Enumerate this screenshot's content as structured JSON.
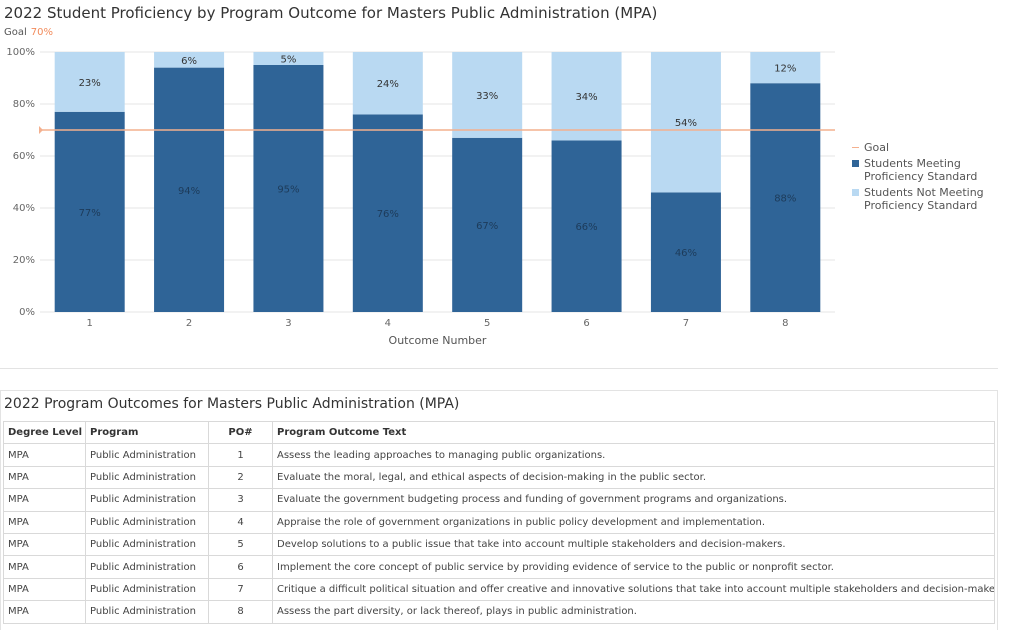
{
  "chart": {
    "title": "2022 Student Proficiency by Program Outcome for Masters Public Administration (MPA)",
    "goal_label": "Goal",
    "goal_value_label": "70%"
  },
  "chart_data": {
    "type": "bar",
    "stacked": true,
    "title": "2022 Student Proficiency by Program Outcome for Masters Public Administration (MPA)",
    "xlabel": "Outcome Number",
    "ylabel": "",
    "ylim": [
      0,
      100
    ],
    "yticks": [
      "0%",
      "20%",
      "40%",
      "60%",
      "80%",
      "100%"
    ],
    "categories": [
      "1",
      "2",
      "3",
      "4",
      "5",
      "6",
      "7",
      "8"
    ],
    "series": [
      {
        "name": "Students Meeting Proficiency Standard",
        "values": [
          77,
          94,
          95,
          76,
          67,
          66,
          46,
          88
        ],
        "labels": [
          "77%",
          "94%",
          "95%",
          "76%",
          "67%",
          "66%",
          "46%",
          "88%"
        ]
      },
      {
        "name": "Students Not Meeting Proficiency Standard",
        "values": [
          23,
          6,
          5,
          24,
          33,
          34,
          54,
          12
        ],
        "labels": [
          "23%",
          "6%",
          "5%",
          "24%",
          "33%",
          "34%",
          "54%",
          "12%"
        ]
      }
    ],
    "goal_line": {
      "name": "Goal",
      "value": 70
    },
    "legend_position": "right",
    "grid": true
  },
  "colors": {
    "meeting": "#2f6497",
    "not_meeting": "#b9d9f2",
    "goal": "#f4b08e",
    "grid": "#e6e6e6"
  },
  "legend": [
    {
      "label": "Goal",
      "kind": "line",
      "color": "#f4b08e"
    },
    {
      "label": "Students Meeting Proficiency Standard",
      "kind": "box",
      "color": "#2f6497"
    },
    {
      "label": "Students Not Meeting Proficiency Standard",
      "kind": "box",
      "color": "#b9d9f2"
    }
  ],
  "table": {
    "title": "2022 Program Outcomes for Masters Public Administration (MPA)",
    "headers": [
      "Degree Level",
      "Program",
      "PO#",
      "Program Outcome Text"
    ],
    "rows": [
      [
        "MPA",
        "Public Administration",
        "1",
        "Assess the leading approaches to managing public organizations."
      ],
      [
        "MPA",
        "Public Administration",
        "2",
        "Evaluate the moral, legal, and ethical aspects of decision-making in the public sector."
      ],
      [
        "MPA",
        "Public Administration",
        "3",
        "Evaluate the government budgeting process and funding of government programs and organizations."
      ],
      [
        "MPA",
        "Public Administration",
        "4",
        "Appraise the role of government organizations in public policy development and implementation."
      ],
      [
        "MPA",
        "Public Administration",
        "5",
        "Develop solutions to a public issue that take into account multiple stakeholders and decision-makers."
      ],
      [
        "MPA",
        "Public Administration",
        "6",
        "Implement the core concept of public service by providing evidence of service to the public or nonprofit sector."
      ],
      [
        "MPA",
        "Public Administration",
        "7",
        "Critique a difficult political situation and offer creative and innovative solutions that take into account multiple stakeholders and decision-makers."
      ],
      [
        "MPA",
        "Public Administration",
        "8",
        "Assess the part diversity, or lack thereof, plays in public administration."
      ]
    ]
  }
}
